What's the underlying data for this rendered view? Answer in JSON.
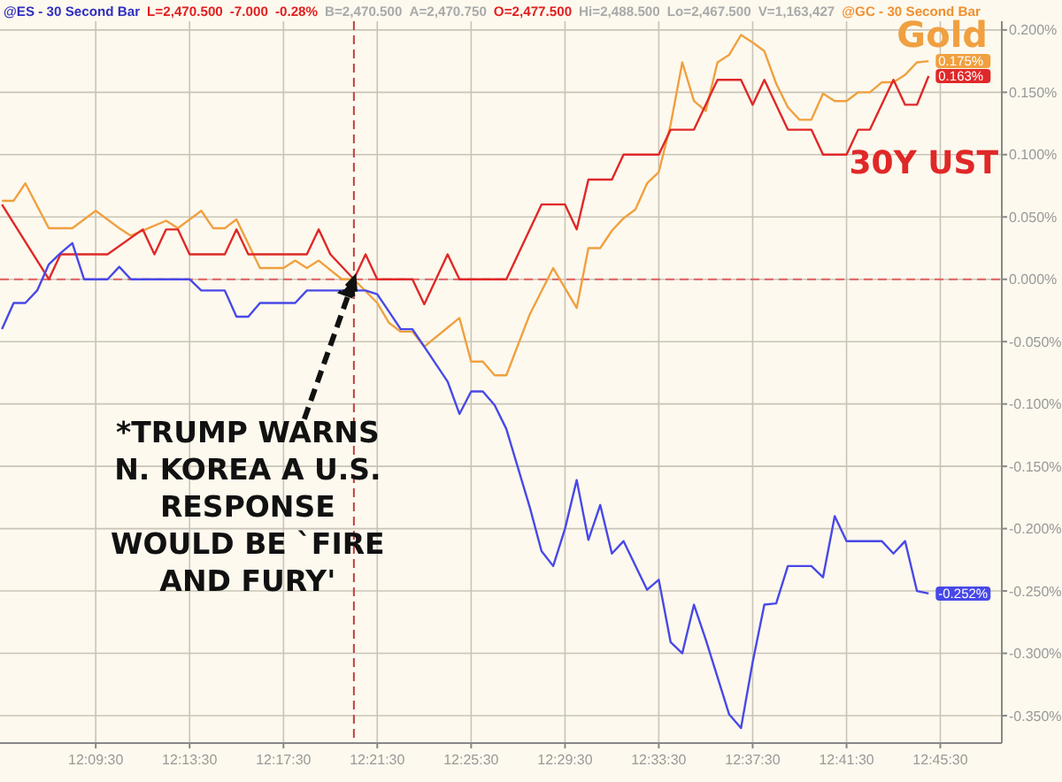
{
  "chart_data": {
    "type": "line",
    "annotations": [
      "@ES - 30 Second Bar",
      "L=2,470.500",
      "-7.000",
      "-0.28%",
      "B=2,470.500",
      "A=2,470.750",
      "O=2,477.500",
      "Hi=2,488.500",
      "Lo=2,467.500",
      "V=1,163,427",
      "@GC - 30 Second Bar",
      "*TRUMP WARNS\nN. KOREA A U.S.\nRESPONSE\nWOULD BE `FIRE\nAND FURY'"
    ],
    "series": [
      {
        "name": "Gold",
        "color": "#f0a040",
        "x": [
          12.0917,
          12.1,
          12.1083,
          12.125,
          12.1417,
          12.1583,
          12.175,
          12.1833,
          12.2083,
          12.2167,
          12.2333,
          12.2417,
          12.25,
          12.2583,
          12.275,
          12.2917,
          12.3,
          12.3083,
          12.3167,
          12.3333,
          12.3417,
          12.3583,
          12.3667,
          12.375,
          12.3833,
          12.3917,
          12.4167,
          12.425,
          12.4333,
          12.4417,
          12.45,
          12.4667,
          12.4833,
          12.5,
          12.5083,
          12.5167,
          12.525,
          12.5333,
          12.5417,
          12.55,
          12.5583,
          12.5667,
          12.575,
          12.5833,
          12.5917,
          12.6,
          12.6083,
          12.6167,
          12.625,
          12.6333,
          12.6417,
          12.65,
          12.6583,
          12.6667,
          12.675,
          12.6833,
          12.6917,
          12.7,
          12.7083,
          12.7167,
          12.725,
          12.7333,
          12.7417,
          12.75
        ],
        "values": [
          0.063,
          0.063,
          0.077,
          0.041,
          0.041,
          0.055,
          0.041,
          0.035,
          0.047,
          0.041,
          0.055,
          0.041,
          0.041,
          0.048,
          0.009,
          0.009,
          0.015,
          0.009,
          0.015,
          0.0,
          0.0,
          -0.019,
          -0.035,
          -0.042,
          -0.042,
          -0.054,
          -0.031,
          -0.066,
          -0.066,
          -0.077,
          -0.077,
          -0.028,
          0.009,
          -0.023,
          0.025,
          0.025,
          0.039,
          0.049,
          0.056,
          0.077,
          0.086,
          0.124,
          0.174,
          0.143,
          0.135,
          0.174,
          0.18,
          0.196,
          0.19,
          0.183,
          0.157,
          0.138,
          0.128,
          0.128,
          0.149,
          0.143,
          0.143,
          0.15,
          0.15,
          0.158,
          0.158,
          0.164,
          0.174,
          0.175
        ],
        "value_labels": [
          null,
          null,
          null,
          null,
          null,
          null,
          null,
          null,
          null,
          null,
          null,
          null,
          null,
          null,
          null,
          null,
          null,
          null,
          null,
          null,
          null,
          null,
          null,
          null,
          null,
          null,
          null,
          null,
          null,
          null,
          null,
          null,
          null,
          null,
          null,
          null,
          null,
          null,
          null,
          null,
          null,
          null,
          null,
          null,
          null,
          null,
          null,
          null,
          null,
          null,
          null,
          null,
          null,
          null,
          null,
          null,
          null,
          null,
          null,
          null,
          null,
          null,
          null,
          "0.175%"
        ]
      },
      {
        "name": "30Y UST",
        "color": "#e02828",
        "x": [
          12.0917,
          12.125,
          12.1333,
          12.1667,
          12.1917,
          12.2,
          12.2083,
          12.2167,
          12.225,
          12.25,
          12.2583,
          12.2667,
          12.3083,
          12.3167,
          12.325,
          12.3417,
          12.35,
          12.3583,
          12.3833,
          12.3917,
          12.4,
          12.4083,
          12.4167,
          12.45,
          12.4667,
          12.475,
          12.4917,
          12.5,
          12.5083,
          12.525,
          12.5333,
          12.5583,
          12.5667,
          12.5833,
          12.6,
          12.6167,
          12.625,
          12.6333,
          12.65,
          12.6667,
          12.675,
          12.6917,
          12.7,
          12.7083,
          12.725,
          12.7333,
          12.7417,
          12.75
        ],
        "values": [
          0.06,
          0.0,
          0.02,
          0.02,
          0.04,
          0.02,
          0.04,
          0.04,
          0.02,
          0.02,
          0.04,
          0.02,
          0.02,
          0.04,
          0.02,
          0.0,
          0.02,
          0.0,
          0.0,
          -0.02,
          0.0,
          0.02,
          0.0,
          0.0,
          0.04,
          0.06,
          0.06,
          0.04,
          0.08,
          0.08,
          0.1,
          0.1,
          0.12,
          0.12,
          0.16,
          0.16,
          0.14,
          0.16,
          0.12,
          0.12,
          0.1,
          0.1,
          0.12,
          0.12,
          0.16,
          0.14,
          0.14,
          0.163
        ],
        "value_labels": [
          null,
          null,
          null,
          null,
          null,
          null,
          null,
          null,
          null,
          null,
          null,
          null,
          null,
          null,
          null,
          null,
          null,
          null,
          null,
          null,
          null,
          null,
          null,
          null,
          null,
          null,
          null,
          null,
          null,
          null,
          null,
          null,
          null,
          null,
          null,
          null,
          null,
          null,
          null,
          null,
          null,
          null,
          null,
          null,
          null,
          null,
          null,
          "0.163%"
        ]
      },
      {
        "color": "#4848e8",
        "x": [
          12.0917,
          12.1,
          12.1083,
          12.1167,
          12.125,
          12.1333,
          12.1417,
          12.15,
          12.1667,
          12.175,
          12.1833,
          12.225,
          12.2333,
          12.25,
          12.2583,
          12.2667,
          12.275,
          12.3,
          12.3083,
          12.3417,
          12.35,
          12.3583,
          12.3667,
          12.375,
          12.3833,
          12.3917,
          12.4,
          12.4083,
          12.4167,
          12.425,
          12.4333,
          12.4417,
          12.45,
          12.4667,
          12.475,
          12.4833,
          12.4917,
          12.5,
          12.5083,
          12.5167,
          12.525,
          12.5333,
          12.55,
          12.5583,
          12.5667,
          12.575,
          12.5833,
          12.5917,
          12.6083,
          12.6167,
          12.625,
          12.6333,
          12.6417,
          12.65,
          12.6667,
          12.675,
          12.6833,
          12.6917,
          12.7167,
          12.725,
          12.7333,
          12.7417,
          12.75
        ],
        "values": [
          -0.04,
          -0.019,
          -0.019,
          -0.009,
          0.012,
          0.021,
          0.029,
          0.0,
          0.0,
          0.01,
          0.0,
          0.0,
          -0.009,
          -0.009,
          -0.03,
          -0.03,
          -0.019,
          -0.019,
          -0.009,
          -0.009,
          -0.009,
          -0.012,
          -0.026,
          -0.04,
          -0.04,
          -0.054,
          -0.068,
          -0.082,
          -0.108,
          -0.09,
          -0.09,
          -0.101,
          -0.12,
          -0.183,
          -0.218,
          -0.23,
          -0.2,
          -0.161,
          -0.209,
          -0.181,
          -0.22,
          -0.21,
          -0.249,
          -0.241,
          -0.291,
          -0.3,
          -0.261,
          -0.289,
          -0.349,
          -0.36,
          -0.307,
          -0.261,
          -0.26,
          -0.23,
          -0.23,
          -0.239,
          -0.19,
          -0.21,
          -0.21,
          -0.22,
          -0.21,
          -0.25,
          -0.252
        ],
        "value_labels": [
          null,
          null,
          null,
          null,
          null,
          null,
          null,
          null,
          null,
          null,
          null,
          null,
          null,
          null,
          null,
          null,
          null,
          null,
          null,
          null,
          null,
          null,
          null,
          null,
          null,
          null,
          null,
          null,
          null,
          null,
          null,
          null,
          null,
          null,
          null,
          null,
          null,
          null,
          null,
          null,
          null,
          null,
          null,
          null,
          null,
          null,
          null,
          null,
          null,
          null,
          null,
          null,
          null,
          null,
          null,
          null,
          null,
          null,
          null,
          null,
          null,
          null,
          "-0.252%"
        ]
      }
    ],
    "xlim": [
      12.0903,
      12.802
    ],
    "xticks": [
      {
        "value": 12.1583,
        "label": "12:09:30"
      },
      {
        "value": 12.225,
        "label": "12:13:30"
      },
      {
        "value": 12.2917,
        "label": "12:17:30"
      },
      {
        "value": 12.3583,
        "label": "12:21:30"
      },
      {
        "value": 12.425,
        "label": "12:25:30"
      },
      {
        "value": 12.4917,
        "label": "12:29:30"
      },
      {
        "value": 12.5583,
        "label": "12:33:30"
      },
      {
        "value": 12.625,
        "label": "12:37:30"
      },
      {
        "value": 12.6917,
        "label": "12:41:30"
      },
      {
        "value": 12.7583,
        "label": "12:45:30"
      }
    ],
    "ylim": [
      -0.372,
      0.207
    ],
    "yticks": [
      {
        "value": 0.2,
        "label": "0.200%"
      },
      {
        "value": 0.15,
        "label": "0.150%"
      },
      {
        "value": 0.1,
        "label": "0.100%"
      },
      {
        "value": 0.05,
        "label": "0.050%"
      },
      {
        "value": 0,
        "label": "0.000%"
      },
      {
        "value": -0.05,
        "label": "-0.050%"
      },
      {
        "value": -0.1,
        "label": "-0.100%"
      },
      {
        "value": -0.15,
        "label": "-0.150%"
      },
      {
        "value": -0.2,
        "label": "-0.200%"
      },
      {
        "value": -0.25,
        "label": "-0.250%"
      },
      {
        "value": -0.3,
        "label": "-0.300%"
      },
      {
        "value": -0.35,
        "label": "-0.350%"
      }
    ],
    "ref_lines": [
      {
        "axis": "y",
        "value": 0,
        "color": "#e06060",
        "line_style": "dashed"
      },
      {
        "axis": "x",
        "value": 12.3417,
        "color": "#c04040",
        "line_style": "dashed"
      }
    ],
    "grid": true,
    "legend": false,
    "marker": "none",
    "line_style": "solid"
  }
}
